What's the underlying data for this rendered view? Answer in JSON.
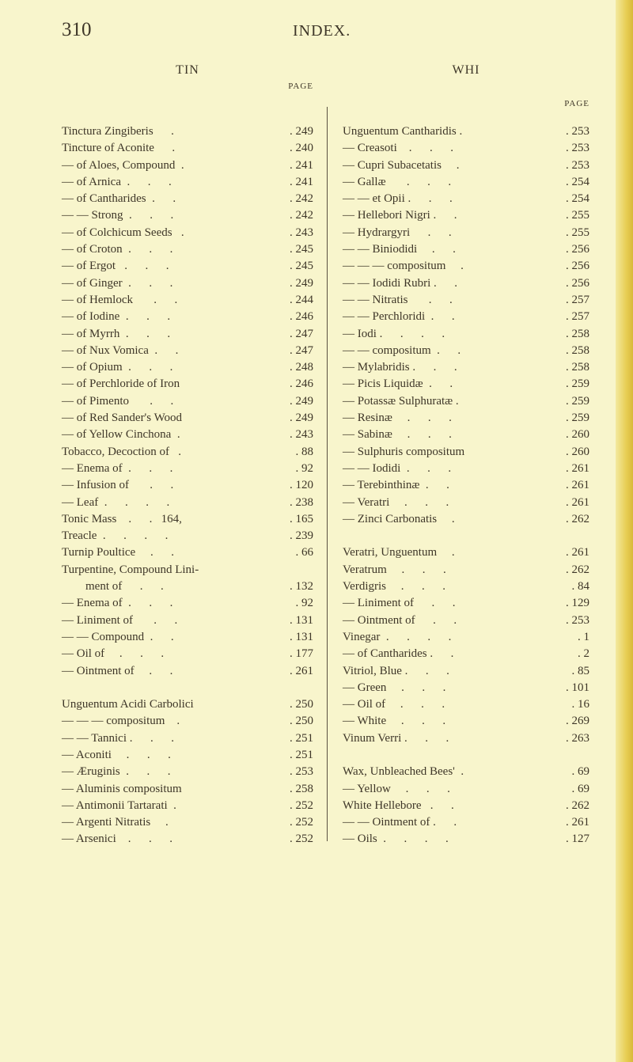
{
  "page_number": "310",
  "running_head": "INDEX.",
  "left": {
    "heading": "TIN",
    "page_label": "PAGE",
    "entries": [
      {
        "text": "Tinctura Zingiberis      .",
        "page": "249"
      },
      {
        "text": "Tincture of Aconite      .",
        "page": "240"
      },
      {
        "text": "— of Aloes, Compound  .",
        "page": "241"
      },
      {
        "text": "— of Arnica  .      .      .",
        "page": "241"
      },
      {
        "text": "— of Cantharides  .      .",
        "page": "242"
      },
      {
        "text": "— — Strong  .      .      .",
        "page": "242"
      },
      {
        "text": "— of Colchicum Seeds   .",
        "page": "243"
      },
      {
        "text": "— of Croton  .      .      .",
        "page": "245"
      },
      {
        "text": "— of Ergot   .      .      .",
        "page": "245"
      },
      {
        "text": "— of Ginger  .      .      .",
        "page": "249"
      },
      {
        "text": "— of Hemlock       .      .",
        "page": "244"
      },
      {
        "text": "— of Iodine  .      .      .",
        "page": "246"
      },
      {
        "text": "— of Myrrh  .      .      .",
        "page": "247"
      },
      {
        "text": "— of Nux Vomica  .      .",
        "page": "247"
      },
      {
        "text": "— of Opium  .      .      .",
        "page": "248"
      },
      {
        "text": "— of Perchloride of Iron",
        "page": "246"
      },
      {
        "text": "— of Pimento       .      .",
        "page": "249"
      },
      {
        "text": "— of Red Sander's Wood",
        "page": "249"
      },
      {
        "text": "— of Yellow Cinchona  .",
        "page": "243"
      },
      {
        "text": "Tobacco, Decoction of   .",
        "page": "88"
      },
      {
        "text": "— Enema of  .      .      .",
        "page": "92"
      },
      {
        "text": "— Infusion of       .      .",
        "page": "120"
      },
      {
        "text": "— Leaf  .      .      .      .",
        "page": "238"
      },
      {
        "text": "Tonic Mass    .      .   164,",
        "page": "165"
      },
      {
        "text": "Treacle  .      .      .      .",
        "page": "239"
      },
      {
        "text": "Turnip Poultice     .      .",
        "page": "66"
      },
      {
        "text": "Turpentine, Compound Lini-",
        "page": ""
      },
      {
        "text": "        ment of      .      .",
        "page": "132"
      },
      {
        "text": "— Enema of  .      .      .",
        "page": "92"
      },
      {
        "text": "— Liniment of       .      .",
        "page": "131"
      },
      {
        "text": "— — Compound  .      .",
        "page": "131"
      },
      {
        "text": "— Oil of     .      .      .",
        "page": "177"
      },
      {
        "text": "— Ointment of     .      .",
        "page": "261"
      },
      {
        "text": "",
        "page": ""
      },
      {
        "text": "Unguentum Acidi Carbolici",
        "page": "250"
      },
      {
        "text": "— — — compositum    .",
        "page": "250"
      },
      {
        "text": "— — Tannici .      .      .",
        "page": "251"
      },
      {
        "text": "— Aconiti     .      .      .",
        "page": "251"
      },
      {
        "text": "— Æruginis  .      .      .",
        "page": "253"
      },
      {
        "text": "— Aluminis compositum",
        "page": "258"
      },
      {
        "text": "— Antimonii Tartarati  .",
        "page": "252"
      },
      {
        "text": "— Argenti Nitratis     .",
        "page": "252"
      },
      {
        "text": "— Arsenici    .      .      .",
        "page": "252"
      }
    ]
  },
  "right": {
    "heading": "WHI",
    "page_label": "PAGE",
    "entries": [
      {
        "text": "Unguentum Cantharidis .",
        "page": "253"
      },
      {
        "text": "— Creasoti    .      .      .",
        "page": "253"
      },
      {
        "text": "— Cupri Subacetatis     .",
        "page": "253"
      },
      {
        "text": "— Gallæ       .      .      .",
        "page": "254"
      },
      {
        "text": "— — et Opii .      .      .",
        "page": "254"
      },
      {
        "text": "— Hellebori Nigri .      .",
        "page": "255"
      },
      {
        "text": "— Hydrargyri      .      .",
        "page": "255"
      },
      {
        "text": "— — Biniodidi     .      .",
        "page": "256"
      },
      {
        "text": "— — — compositum     .",
        "page": "256"
      },
      {
        "text": "— — Iodidi Rubri .      .",
        "page": "256"
      },
      {
        "text": "— — Nitratis       .      .",
        "page": "257"
      },
      {
        "text": "— — Perchloridi  .      .",
        "page": "257"
      },
      {
        "text": "— Iodi .      .      .      .",
        "page": "258"
      },
      {
        "text": "— — compositum  .      .",
        "page": "258"
      },
      {
        "text": "— Mylabridis .      .      .",
        "page": "258"
      },
      {
        "text": "— Picis Liquidæ  .      .",
        "page": "259"
      },
      {
        "text": "— Potassæ Sulphuratæ .",
        "page": "259"
      },
      {
        "text": "— Resinæ     .      .      .",
        "page": "259"
      },
      {
        "text": "— Sabinæ     .      .      .",
        "page": "260"
      },
      {
        "text": "— Sulphuris compositum",
        "page": "260"
      },
      {
        "text": "— — Iodidi  .      .      .",
        "page": "261"
      },
      {
        "text": "— Terebinthinæ  .      .",
        "page": "261"
      },
      {
        "text": "— Veratri     .      .      .",
        "page": "261"
      },
      {
        "text": "— Zinci Carbonatis     .",
        "page": "262"
      },
      {
        "text": "",
        "page": ""
      },
      {
        "text": "Veratri, Unguentum     .",
        "page": "261"
      },
      {
        "text": "Veratrum     .      .      .",
        "page": "262"
      },
      {
        "text": "Verdigris     .      .      .",
        "page": "84"
      },
      {
        "text": "— Liniment of      .      .",
        "page": "129"
      },
      {
        "text": "— Ointment of      .      .",
        "page": "253"
      },
      {
        "text": "Vinegar  .      .      .      .",
        "page": "1"
      },
      {
        "text": "— of Cantharides .      .",
        "page": "2"
      },
      {
        "text": "Vitriol, Blue .      .      .",
        "page": "85"
      },
      {
        "text": "— Green     .      .      .",
        "page": "101"
      },
      {
        "text": "— Oil of     .      .      .",
        "page": "16"
      },
      {
        "text": "— White     .      .      .",
        "page": "269"
      },
      {
        "text": "Vinum Verri .      .      .",
        "page": "263"
      },
      {
        "text": "",
        "page": ""
      },
      {
        "text": "Wax, Unbleached Bees'  .",
        "page": "69"
      },
      {
        "text": "— Yellow     .      .      .",
        "page": "69"
      },
      {
        "text": "White Hellebore   .      .",
        "page": "262"
      },
      {
        "text": "— — Ointment of .      .",
        "page": "261"
      },
      {
        "text": "— Oils  .      .      .      .",
        "page": "127"
      }
    ]
  }
}
